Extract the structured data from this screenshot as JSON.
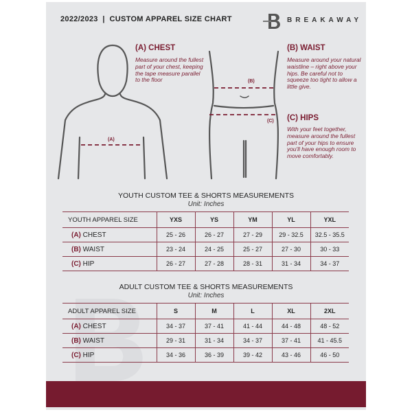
{
  "header": {
    "title": "2022/2023  |  CUSTOM APPAREL SIZE CHART",
    "brand": "BREAKAWAY"
  },
  "colors": {
    "accent": "#761b2f",
    "background": "#e6e7e9"
  },
  "guide": {
    "chest": {
      "title": "(A) CHEST",
      "text": "Measure around the fullest part of your chest, keeping the tape measure parallel to the floor",
      "marker": "(A)"
    },
    "waist": {
      "title": "(B) WAIST",
      "text": "Measure around your natural waistline – right above your hips. Be careful not to squeeze too tight to allow a little give.",
      "marker": "(B)"
    },
    "hips": {
      "title": "(C) HIPS",
      "text": "With your feet together, measure around the fullest part of your hips to ensure you'll have enough room to move comfortably.",
      "marker": "(C)"
    }
  },
  "youth": {
    "title": "YOUTH CUSTOM TEE & SHORTS MEASUREMENTS",
    "unit": "Unit: Inches",
    "header": "YOUTH APPAREL SIZE",
    "sizes": [
      "YXS",
      "YS",
      "YM",
      "YL",
      "YXL"
    ],
    "rows": [
      {
        "code": "(A)",
        "label": "CHEST",
        "values": [
          "25 - 26",
          "26 - 27",
          "27 - 29",
          "29 - 32.5",
          "32.5 - 35.5"
        ]
      },
      {
        "code": "(B)",
        "label": "WAIST",
        "values": [
          "23 - 24",
          "24 - 25",
          "25 - 27",
          "27 - 30",
          "30 - 33"
        ]
      },
      {
        "code": "(C)",
        "label": "HIP",
        "values": [
          "26 - 27",
          "27 - 28",
          "28 - 31",
          "31 - 34",
          "34 - 37"
        ]
      }
    ]
  },
  "adult": {
    "title": "ADULT CUSTOM TEE & SHORTS MEASUREMENTS",
    "unit": "Unit: Inches",
    "header": "ADULT APPAREL SIZE",
    "sizes": [
      "S",
      "M",
      "L",
      "XL",
      "2XL"
    ],
    "rows": [
      {
        "code": "(A)",
        "label": "CHEST",
        "values": [
          "34 - 37",
          "37 - 41",
          "41 - 44",
          "44 - 48",
          "48 - 52"
        ]
      },
      {
        "code": "(B)",
        "label": "WAIST",
        "values": [
          "29 - 31",
          "31 - 34",
          "34 - 37",
          "37 - 41",
          "41 - 45.5"
        ]
      },
      {
        "code": "(C)",
        "label": "HIP",
        "values": [
          "34 - 36",
          "36 - 39",
          "39 - 42",
          "43 - 46",
          "46 - 50"
        ]
      }
    ]
  }
}
